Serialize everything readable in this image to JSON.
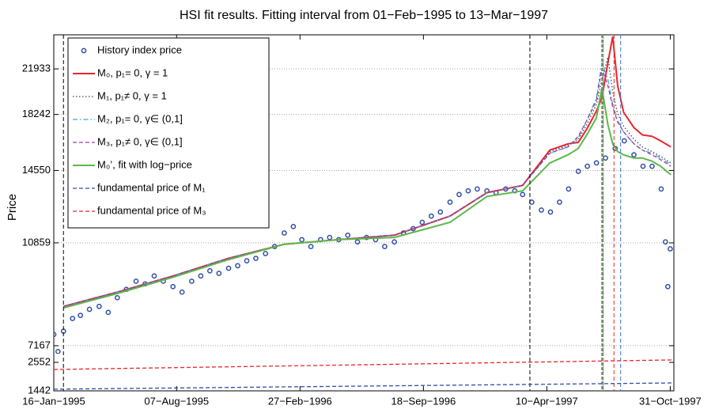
{
  "chart_data": [
    {
      "type": "line",
      "title": "HSI fit results. Fitting interval from 01−Feb−1995 to 13−Mar−1997",
      "ylabel": "Price",
      "log_y": true,
      "grid": true,
      "legend": "upper left",
      "xlim": [
        "1995-01-16",
        "1997-11-06"
      ],
      "ylim": [
        6940,
        25170
      ],
      "yticks": [
        7167,
        10859,
        14550,
        18242,
        21933
      ],
      "x": [
        "1995-02-01",
        "1995-05-01",
        "1995-08-01",
        "1995-11-01",
        "1996-02-01",
        "1996-05-01",
        "1996-08-01",
        "1996-11-01",
        "1997-01-01",
        "1997-03-01",
        "1997-04-15",
        "1997-05-15",
        "1997-06-01",
        "1997-06-15",
        "1997-07-01",
        "1997-07-10",
        "1997-07-20",
        "1997-07-28",
        "1997-08-05",
        "1997-08-15",
        "1997-09-01",
        "1997-09-15",
        "1997-10-01",
        "1997-10-15",
        "1997-11-01"
      ],
      "series": [
        {
          "name": "History index price",
          "color": "#2f4fa5",
          "style": "markers",
          "x": [
            "1995-01-16",
            "1995-01-23",
            "1995-02-01",
            "1995-02-16",
            "1995-03-01",
            "1995-03-16",
            "1995-04-01",
            "1995-04-16",
            "1995-05-01",
            "1995-05-16",
            "1995-06-01",
            "1995-06-16",
            "1995-07-01",
            "1995-07-16",
            "1995-08-01",
            "1995-08-16",
            "1995-09-01",
            "1995-09-16",
            "1995-10-01",
            "1995-10-16",
            "1995-11-01",
            "1995-11-16",
            "1995-12-01",
            "1995-12-16",
            "1996-01-01",
            "1996-01-16",
            "1996-02-01",
            "1996-02-16",
            "1996-03-01",
            "1996-03-16",
            "1996-04-01",
            "1996-04-16",
            "1996-05-01",
            "1996-05-16",
            "1996-06-01",
            "1996-06-16",
            "1996-07-01",
            "1996-07-16",
            "1996-08-01",
            "1996-08-16",
            "1996-09-01",
            "1996-09-16",
            "1996-10-01",
            "1996-10-16",
            "1996-11-01",
            "1996-11-16",
            "1996-12-01",
            "1996-12-16",
            "1997-01-01",
            "1997-01-16",
            "1997-02-01",
            "1997-02-16",
            "1997-03-01",
            "1997-03-16",
            "1997-04-01",
            "1997-04-16",
            "1997-05-01",
            "1997-05-16",
            "1997-06-01",
            "1997-06-16",
            "1997-07-01",
            "1997-07-16",
            "1997-08-01",
            "1997-08-16",
            "1997-09-01",
            "1997-09-16",
            "1997-10-01",
            "1997-10-16",
            "1997-10-23",
            "1997-10-27",
            "1997-10-31"
          ],
          "values": [
            7500,
            7000,
            7600,
            8000,
            8100,
            8300,
            8400,
            8200,
            8700,
            9000,
            9300,
            9200,
            9500,
            9300,
            9100,
            8900,
            9300,
            9500,
            9700,
            9600,
            9800,
            9900,
            10100,
            10200,
            10400,
            10700,
            11300,
            11600,
            11000,
            10700,
            11000,
            11100,
            11000,
            11200,
            10900,
            11100,
            11000,
            10700,
            10900,
            11300,
            11500,
            11800,
            12100,
            12300,
            12800,
            13200,
            13400,
            13500,
            13400,
            13300,
            13500,
            13400,
            13200,
            12800,
            12400,
            12300,
            12800,
            13500,
            14500,
            14800,
            15000,
            15300,
            15900,
            16400,
            15500,
            14800,
            14800,
            13500,
            10900,
            9100,
            10600
          ]
        },
        {
          "name": "M₀, p₁= 0, γ = 1",
          "color": "#e8262b",
          "style": "solid",
          "values": [
            8400,
            8900,
            9500,
            10200,
            10800,
            11000,
            11200,
            12100,
            13300,
            13700,
            15800,
            16200,
            16300,
            17200,
            18500,
            19500,
            22500,
            25000,
            20500,
            18400,
            17300,
            16800,
            16700,
            16400,
            16000
          ]
        },
        {
          "name": "M₁, p₁≠ 0, γ = 1",
          "color": "#444444",
          "style": "dotted",
          "values": [
            8400,
            8900,
            9500,
            10200,
            10800,
            11000,
            11200,
            12100,
            13300,
            13700,
            15700,
            16100,
            16500,
            17500,
            19000,
            21000,
            23000,
            20000,
            18300,
            17400,
            16500,
            16000,
            15700,
            15400,
            15000
          ]
        },
        {
          "name": "M₂, p₁= 0, γ∈ (0,1]",
          "color": "#3aa8e0",
          "style": "dashdot",
          "values": [
            8400,
            8900,
            9500,
            10200,
            10800,
            11000,
            11200,
            12100,
            13300,
            13700,
            15600,
            16000,
            16600,
            17800,
            19500,
            22500,
            21000,
            19000,
            17800,
            17000,
            16200,
            15800,
            15600,
            15300,
            14900
          ]
        },
        {
          "name": "M₃, p₁≠ 0, γ∈ (0,1]",
          "color": "#9b3fa0",
          "style": "dashed",
          "values": [
            8400,
            8900,
            9500,
            10200,
            10800,
            11000,
            11200,
            12100,
            13300,
            13700,
            15600,
            16000,
            16700,
            17800,
            19300,
            22000,
            20500,
            18800,
            17700,
            17000,
            16200,
            15800,
            15500,
            15200,
            14800
          ]
        },
        {
          "name": "M₀’, fit with log−price",
          "color": "#5cb84a",
          "style": "solid",
          "values": [
            8350,
            8850,
            9450,
            10150,
            10800,
            11000,
            11100,
            11800,
            13100,
            13400,
            15000,
            15500,
            15900,
            16800,
            18000,
            20300,
            17500,
            16200,
            15700,
            15500,
            15300,
            15300,
            15100,
            14800,
            14300
          ]
        }
      ],
      "vlines": [
        {
          "x": "1995-02-01",
          "color": "#000000",
          "style": "dashed"
        },
        {
          "x": "1997-03-13",
          "color": "#000000",
          "style": "dashed"
        },
        {
          "x": "1997-07-11",
          "color": "#808080",
          "style": "thick"
        },
        {
          "x": "1997-07-12",
          "color": "#5cb84a",
          "style": "dashed"
        },
        {
          "x": "1997-07-30",
          "color": "#e8262b",
          "style": "dashed"
        },
        {
          "x": "1997-08-10",
          "color": "#3a6fd0",
          "style": "dashed"
        }
      ]
    },
    {
      "type": "line",
      "log_y": true,
      "xlim": [
        "1995-01-16",
        "1997-11-06"
      ],
      "ylim": [
        1442,
        3040
      ],
      "yticks": [
        1442,
        2552
      ],
      "xticks": [
        {
          "value": "1995-01-16",
          "label": "16−Jan−1995"
        },
        {
          "value": "1995-08-07",
          "label": "07−Aug−1995"
        },
        {
          "value": "1996-02-27",
          "label": "27−Feb−1996"
        },
        {
          "value": "1996-09-18",
          "label": "18−Sep−1996"
        },
        {
          "value": "1997-04-10",
          "label": "10−Apr−1997"
        },
        {
          "value": "1997-10-31",
          "label": "31−Oct−1997"
        }
      ],
      "series": [
        {
          "name": "fundamental price of M₁",
          "color": "#2f4fa5",
          "style": "dashed",
          "x": [
            "1995-01-16",
            "1996-06-11",
            "1997-11-06"
          ],
          "values": [
            1490,
            1585,
            1690
          ]
        },
        {
          "name": "fundamental price of M₃",
          "color": "#e8262b",
          "style": "dashed",
          "x": [
            "1995-01-16",
            "1996-06-11",
            "1997-11-06"
          ],
          "values": [
            2213,
            2435,
            2680
          ]
        }
      ]
    }
  ]
}
